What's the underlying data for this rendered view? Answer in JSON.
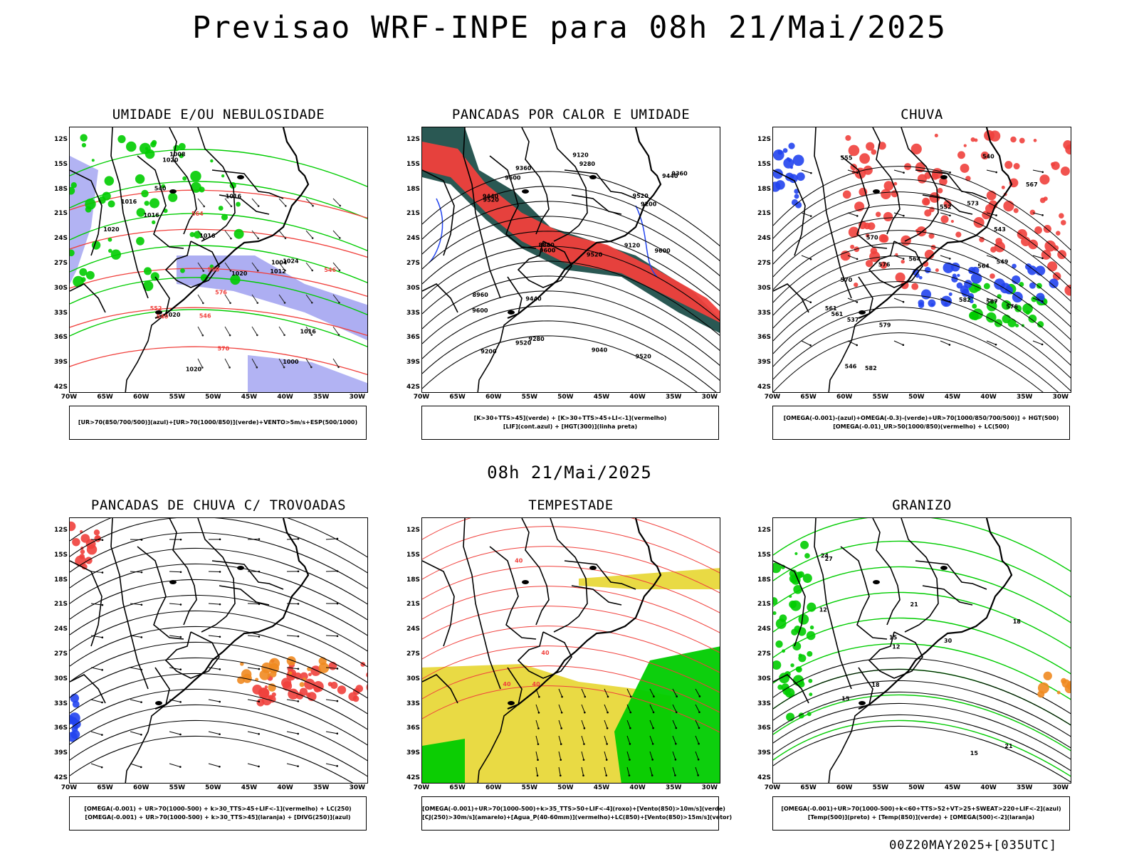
{
  "title": "Previsao WRF-INPE  para 08h 21/Mai/2025",
  "subtitle": "08h 21/Mai/2025",
  "footer": "00Z20MAY2025+[035UTC]",
  "axis": {
    "lat_labels": [
      "12S",
      "15S",
      "18S",
      "21S",
      "24S",
      "27S",
      "30S",
      "33S",
      "36S",
      "39S",
      "42S"
    ],
    "lon_labels": [
      "70W",
      "65W",
      "60W",
      "55W",
      "50W",
      "45W",
      "40W",
      "35W",
      "30W"
    ]
  },
  "colors": {
    "red": "#f0403c",
    "green": "#00cc00",
    "blue": "#2244ee",
    "lavender": "#9fa0f0",
    "teal": "#1f4f4a",
    "yellow": "#e8d83a",
    "orange": "#f08a20",
    "black": "#000000"
  },
  "panels": [
    {
      "title": "UMIDADE E/OU NEBULOSIDADE",
      "legend": [
        "[UR>70(850/700/500)](azul)+[UR>70(1000/850)](verde)+VENTO>5m/s+ESP(500/1000)"
      ],
      "labels": [
        "1016",
        "1016",
        "1016",
        "1020",
        "1020",
        "1016",
        "1020",
        "1020",
        "1016",
        "1012",
        "1008",
        "1004",
        "1000",
        "1024",
        "576",
        "570",
        "564",
        "558",
        "552",
        "546",
        "546",
        "540",
        "540",
        "1020"
      ]
    },
    {
      "title": "PANCADAS POR CALOR E UMIDADE",
      "legend": [
        "[K>30+TTS>45](verde) + [K>30+TTS>45+LI<-1](vermelho)",
        "[LIF](cont.azul) + [HGT(300)](linha preta)"
      ],
      "labels": [
        "9600",
        "9600",
        "9600",
        "9520",
        "9600",
        "9520",
        "9520",
        "9520",
        "9440",
        "9440",
        "9520",
        "9360",
        "9440",
        "9360",
        "9280",
        "9280",
        "9200",
        "9200",
        "9120",
        "9040",
        "8960",
        "8880",
        "9120"
      ]
    },
    {
      "title": "CHUVA",
      "legend": [
        "[OMEGA(-0.001)-(azul)+OMEGA(-0.3)-(verde)+UR>70(1000/850/700/500)] + HGT(500)",
        "[OMEGA(-0.01)_UR>50(1000/850)(vermelho) + LC(500)"
      ],
      "labels": [
        "582",
        "582",
        "576",
        "579",
        "576",
        "573",
        "570",
        "567",
        "564",
        "561",
        "570",
        "567",
        "564",
        "561",
        "555",
        "552",
        "549",
        "546",
        "543",
        "540",
        "537"
      ]
    },
    {
      "title": "PANCADAS DE CHUVA C/ TROVOADAS",
      "legend": [
        "[OMEGA(-0.001) + UR>70(1000-500) + k>30_TTS>45+LIF<-1](vermelho) + LC(250)",
        "[OMEGA(-0.001) + UR>70(1000-500) + k>30_TTS>45](laranja) + [DIVG(250)](azul)"
      ],
      "labels": []
    },
    {
      "title": "TEMPESTADE",
      "legend": [
        "[OMEGA(-0.001)+UR>70(1000-500)+k>35_TTS>50+LIF<-4](roxo)+[Vento(850)>10m/s](verde)",
        "[CJ(250)>30m/s](amarelo)+[Agua_P(40-60mm)](vermelho)+LC(850)+[Vento(850)>15m/s](vetor)"
      ],
      "labels": [
        "40",
        "40",
        "40",
        "40"
      ]
    },
    {
      "title": "GRANIZO",
      "legend": [
        "[OMEGA(-0.001)+UR>70(1000-500)+k<60+TTS>52+VT>25+SWEAT>220+LIF<-2](azul)",
        "[Temp(500)](preto) + [Temp(850)](verde) + [OMEGA(500)<-2](laranja)"
      ],
      "labels": [
        "12",
        "12",
        "15",
        "18",
        "18",
        "21",
        "21",
        "24",
        "27",
        "30",
        "15",
        "15"
      ]
    }
  ]
}
